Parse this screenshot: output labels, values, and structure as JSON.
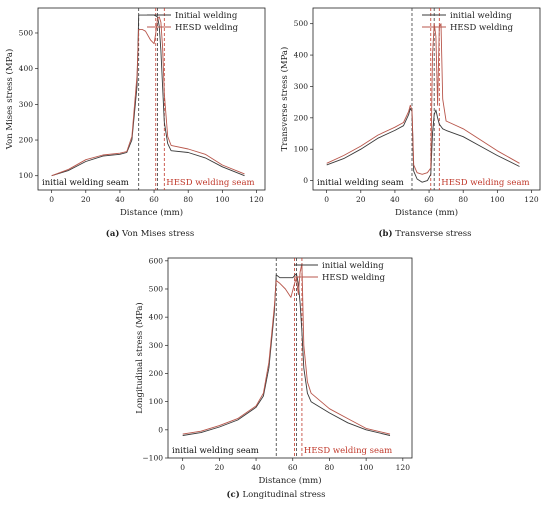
{
  "colors": {
    "initial": "#3a3a3a",
    "hesd": "#b8574c",
    "axis": "#222222",
    "hesd_label": "#c0392b"
  },
  "chart_data": [
    {
      "type": "line",
      "caption_letter": "(a)",
      "caption_text": " Von Mises stress",
      "xlabel": "Distance (mm)",
      "ylabel": "Von Mises stress (MPa)",
      "xlim": [
        -8,
        125
      ],
      "ylim": [
        60,
        570
      ],
      "xticks": [
        0,
        20,
        40,
        60,
        80,
        100,
        120
      ],
      "yticks": [
        100,
        200,
        300,
        400,
        500
      ],
      "legend_position": "top-right",
      "annotations": {
        "left": "initial welding seam",
        "right": "HESD welding seam"
      },
      "vlines": {
        "initial": [
          51,
          62
        ],
        "hesd": [
          61,
          66
        ]
      },
      "series": [
        {
          "name": "Initial welding",
          "color_key": "initial",
          "x": [
            0,
            10,
            20,
            30,
            40,
            44,
            47,
            50,
            51,
            54,
            57,
            60,
            62,
            63,
            64,
            65,
            66,
            68,
            70,
            80,
            90,
            100,
            113
          ],
          "y": [
            100,
            115,
            140,
            155,
            160,
            165,
            200,
            350,
            550,
            550,
            550,
            550,
            545,
            520,
            450,
            350,
            250,
            190,
            170,
            165,
            150,
            125,
            100
          ]
        },
        {
          "name": "HESD welding",
          "color_key": "hesd",
          "x": [
            0,
            10,
            20,
            30,
            40,
            44,
            47,
            50,
            51,
            53,
            55,
            58,
            60,
            61,
            62,
            63,
            64,
            65,
            66,
            68,
            70,
            80,
            90,
            100,
            113
          ],
          "y": [
            100,
            118,
            145,
            158,
            163,
            168,
            210,
            380,
            510,
            510,
            505,
            480,
            470,
            500,
            540,
            545,
            530,
            460,
            330,
            210,
            185,
            175,
            160,
            130,
            105
          ]
        }
      ]
    },
    {
      "type": "line",
      "caption_letter": "(b)",
      "caption_text": " Transverse stress",
      "xlabel": "Distance (mm)",
      "ylabel": "Transverse stress (MPa)",
      "xlim": [
        -8,
        125
      ],
      "ylim": [
        -30,
        550
      ],
      "xticks": [
        0,
        20,
        40,
        60,
        80,
        100,
        120
      ],
      "yticks": [
        0,
        100,
        200,
        300,
        400,
        500
      ],
      "legend_position": "top-right",
      "annotations": {
        "left": "initial welding seam",
        "right": "HESD welding seam"
      },
      "vlines": {
        "initial": [
          50,
          63
        ],
        "hesd": [
          61,
          66
        ]
      },
      "series": [
        {
          "name": "initial welding",
          "color_key": "initial",
          "x": [
            0,
            10,
            20,
            30,
            40,
            45,
            48,
            49,
            50,
            51,
            53,
            56,
            59,
            61,
            62,
            63,
            64,
            65,
            66,
            68,
            70,
            80,
            90,
            100,
            113
          ],
          "y": [
            50,
            70,
            100,
            135,
            160,
            175,
            210,
            230,
            220,
            30,
            5,
            -5,
            0,
            20,
            150,
            210,
            225,
            200,
            180,
            165,
            160,
            140,
            110,
            80,
            45
          ]
        },
        {
          "name": "HESD welding",
          "color_key": "hesd",
          "x": [
            0,
            10,
            20,
            30,
            40,
            45,
            48,
            49,
            50,
            51,
            53,
            56,
            59,
            61,
            62,
            63,
            64,
            65,
            66,
            67,
            68,
            70,
            80,
            90,
            100,
            113
          ],
          "y": [
            55,
            80,
            110,
            145,
            170,
            185,
            220,
            240,
            225,
            50,
            25,
            20,
            25,
            40,
            400,
            500,
            460,
            240,
            490,
            500,
            260,
            190,
            165,
            130,
            95,
            55
          ]
        }
      ]
    },
    {
      "type": "line",
      "caption_letter": "(c)",
      "caption_text": " Longitudinal stress",
      "xlabel": "Distance (mm)",
      "ylabel": "Longitudinal stress (MPa)",
      "xlim": [
        -8,
        125
      ],
      "ylim": [
        -100,
        610
      ],
      "xticks": [
        0,
        20,
        40,
        60,
        80,
        100,
        120
      ],
      "yticks": [
        -100,
        0,
        100,
        200,
        300,
        400,
        500,
        600
      ],
      "legend_position": "top-right",
      "annotations": {
        "left": "initial welding seam",
        "right": "HESD welding seam"
      },
      "vlines": {
        "initial": [
          51,
          62
        ],
        "hesd": [
          61,
          65
        ]
      },
      "series": [
        {
          "name": "initial welding",
          "color_key": "initial",
          "x": [
            0,
            10,
            20,
            30,
            40,
            44,
            47,
            50,
            51,
            53,
            56,
            60,
            62,
            63,
            64,
            65,
            66,
            68,
            70,
            80,
            90,
            100,
            113
          ],
          "y": [
            -20,
            -10,
            10,
            35,
            80,
            120,
            220,
            420,
            550,
            540,
            540,
            540,
            555,
            520,
            450,
            350,
            220,
            130,
            100,
            60,
            25,
            0,
            -20
          ]
        },
        {
          "name": "HESD welding",
          "color_key": "hesd",
          "x": [
            0,
            10,
            20,
            30,
            40,
            44,
            47,
            50,
            51,
            53,
            56,
            59,
            61,
            62,
            63,
            64,
            65,
            66,
            68,
            70,
            80,
            90,
            100,
            113
          ],
          "y": [
            -15,
            -5,
            15,
            40,
            85,
            130,
            240,
            440,
            530,
            520,
            500,
            470,
            520,
            540,
            480,
            560,
            590,
            300,
            170,
            130,
            75,
            40,
            5,
            -15
          ]
        }
      ]
    }
  ]
}
